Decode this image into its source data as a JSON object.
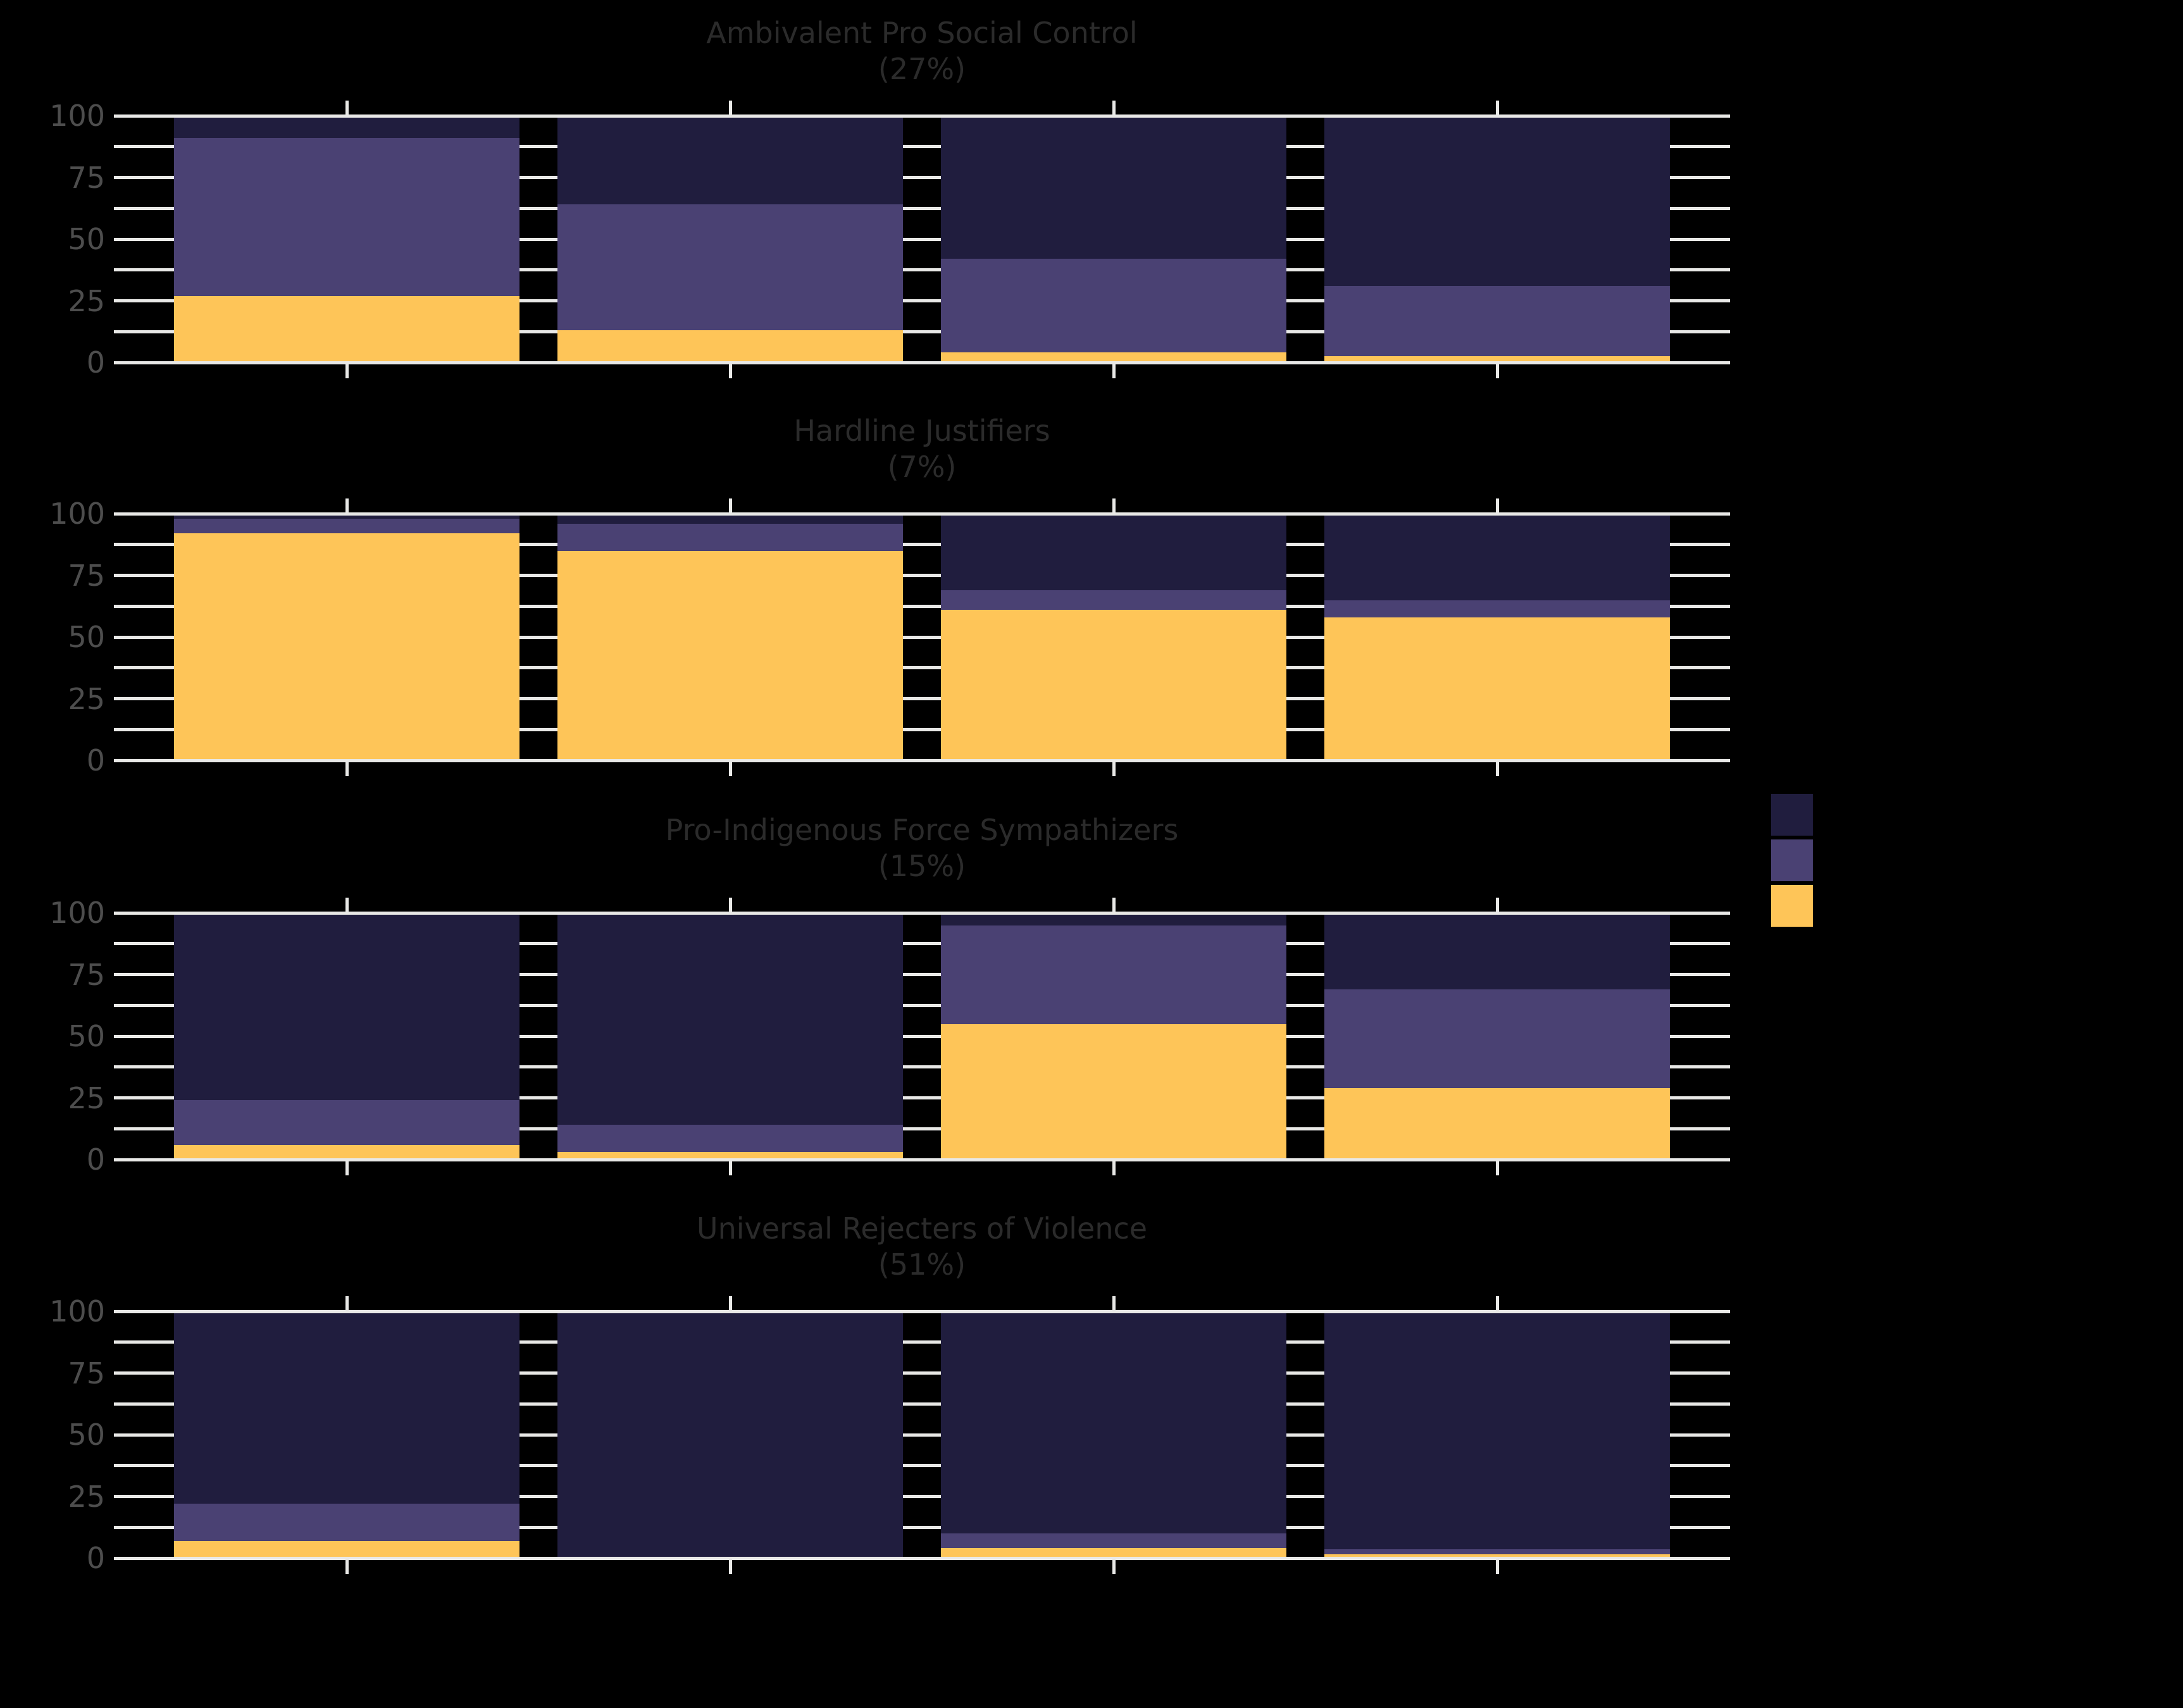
{
  "figure": {
    "background": "#000000",
    "title_color": "#2b2b2b",
    "tick_label_color": "#4d4d4d",
    "grid_color": "#e9e9e7"
  },
  "palette": {
    "navy": "#201d3e",
    "purple": "#4a4173",
    "yellow": "#fec558"
  },
  "legend": {
    "swatches": [
      {
        "name": "navy",
        "color": "#201d3e",
        "label": ""
      },
      {
        "name": "purple",
        "color": "#4a4173",
        "label": ""
      },
      {
        "name": "yellow",
        "color": "#fec558",
        "label": ""
      }
    ]
  },
  "chart_data": [
    {
      "type": "bar",
      "stacked": true,
      "title": "Ambivalent Pro Social Control",
      "subtitle": "(27%)",
      "categories": [
        "",
        "",
        "",
        ""
      ],
      "ylim": [
        0,
        100
      ],
      "yticks": [
        0,
        25,
        50,
        75,
        100
      ],
      "y_tick_labels": [
        "0",
        "25",
        "50",
        "75",
        "100"
      ],
      "minor_tick_interval": 12.5,
      "grid": true,
      "series": [
        {
          "name": "yellow-bottom",
          "color_key": "yellow",
          "values": [
            27,
            13,
            4,
            2.5
          ]
        },
        {
          "name": "purple-middle",
          "color_key": "purple",
          "values": [
            64,
            51,
            38,
            28.5
          ]
        },
        {
          "name": "navy-top",
          "color_key": "navy",
          "values": [
            9,
            36,
            58,
            69
          ]
        }
      ]
    },
    {
      "type": "bar",
      "stacked": true,
      "title": "Hardline Justifiers",
      "subtitle": "(7%)",
      "categories": [
        "",
        "",
        "",
        ""
      ],
      "ylim": [
        0,
        100
      ],
      "yticks": [
        0,
        25,
        50,
        75,
        100
      ],
      "y_tick_labels": [
        "0",
        "25",
        "50",
        "75",
        "100"
      ],
      "minor_tick_interval": 12.5,
      "grid": true,
      "series": [
        {
          "name": "yellow-bottom",
          "color_key": "yellow",
          "values": [
            92,
            85,
            61,
            58
          ]
        },
        {
          "name": "purple-middle",
          "color_key": "purple",
          "values": [
            6,
            11,
            8,
            7
          ]
        },
        {
          "name": "navy-top",
          "color_key": "navy",
          "values": [
            2,
            4,
            31,
            35
          ]
        }
      ]
    },
    {
      "type": "bar",
      "stacked": true,
      "title": "Pro-Indigenous Force Sympathizers",
      "subtitle": "(15%)",
      "categories": [
        "",
        "",
        "",
        ""
      ],
      "ylim": [
        0,
        100
      ],
      "yticks": [
        0,
        25,
        50,
        75,
        100
      ],
      "y_tick_labels": [
        "0",
        "25",
        "50",
        "75",
        "100"
      ],
      "minor_tick_interval": 12.5,
      "grid": true,
      "series": [
        {
          "name": "yellow-bottom",
          "color_key": "yellow",
          "values": [
            6,
            3,
            55,
            29
          ]
        },
        {
          "name": "purple-middle",
          "color_key": "purple",
          "values": [
            18,
            11,
            40,
            40
          ]
        },
        {
          "name": "navy-top",
          "color_key": "navy",
          "values": [
            76,
            86,
            5,
            31
          ]
        }
      ]
    },
    {
      "type": "bar",
      "stacked": true,
      "title": "Universal Rejecters of Violence",
      "subtitle": "(51%)",
      "categories": [
        "",
        "",
        "",
        ""
      ],
      "ylim": [
        0,
        100
      ],
      "yticks": [
        0,
        25,
        50,
        75,
        100
      ],
      "y_tick_labels": [
        "0",
        "25",
        "50",
        "75",
        "100"
      ],
      "minor_tick_interval": 12.5,
      "grid": true,
      "series": [
        {
          "name": "yellow-bottom",
          "color_key": "yellow",
          "values": [
            7,
            0,
            4,
            1.5
          ]
        },
        {
          "name": "purple-middle",
          "color_key": "purple",
          "values": [
            15,
            0,
            6,
            2
          ]
        },
        {
          "name": "navy-top",
          "color_key": "navy",
          "values": [
            78,
            100,
            90,
            96.5
          ]
        }
      ]
    }
  ]
}
